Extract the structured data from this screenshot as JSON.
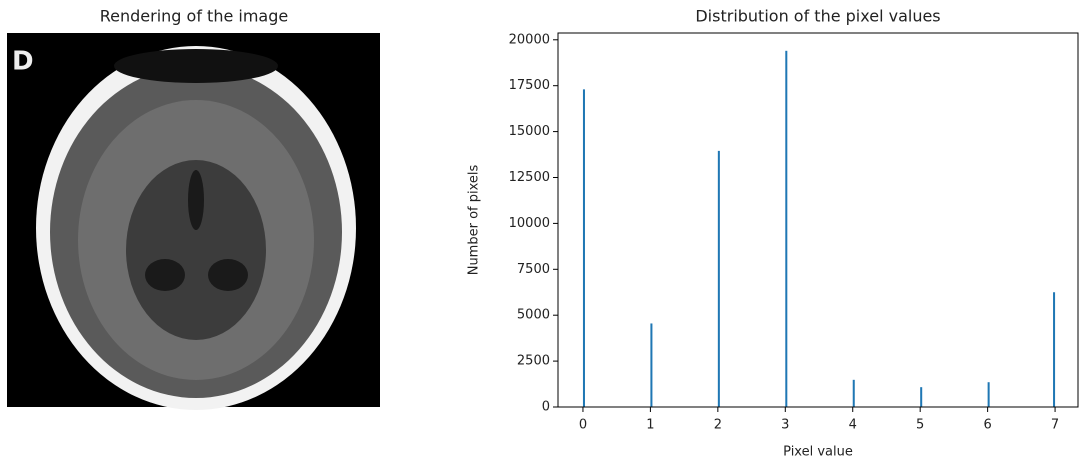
{
  "chart_data": [
    {
      "type": "image",
      "title": "Rendering of the image",
      "label": "D"
    },
    {
      "type": "histogram",
      "title": "Distribution of the pixel values",
      "xlabel": "Pixel value",
      "ylabel": "Number of pixels",
      "bins": [
        0,
        0.03,
        1,
        1.03,
        2,
        2.03,
        3,
        3.03,
        4,
        4.03,
        5,
        5.03,
        6,
        6.03,
        6.97,
        7
      ],
      "values": [
        17300,
        0,
        4550,
        0,
        13950,
        0,
        19400,
        0,
        1480,
        0,
        1080,
        0,
        1350,
        0,
        6250
      ],
      "color": "#1f77b4",
      "xlim": [
        -0.37,
        7.34
      ],
      "xticks": [
        0,
        1,
        2,
        3,
        4,
        5,
        6,
        7
      ],
      "ylim": [
        0,
        20370
      ],
      "yticks": [
        0,
        2500,
        5000,
        7500,
        10000,
        12500,
        15000,
        17500,
        20000
      ]
    }
  ]
}
